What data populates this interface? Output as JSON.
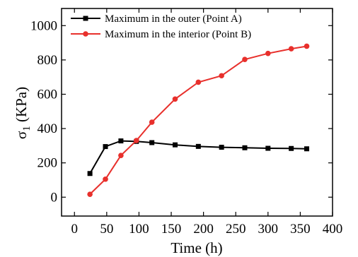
{
  "chart_data": {
    "type": "line",
    "xlabel": "Time (h)",
    "ylabel_main": "σ",
    "ylabel_sub": "1",
    "ylabel_unit": " (KPa)",
    "xlim": [
      -20,
      400
    ],
    "ylim": [
      -110,
      1100
    ],
    "xticks": [
      0,
      50,
      100,
      150,
      200,
      250,
      300,
      350,
      400
    ],
    "yticks": [
      0,
      200,
      400,
      600,
      800,
      1000
    ],
    "grid": false,
    "legend_position": "top-left",
    "series": [
      {
        "name": "Maximum in the outer (Point A)",
        "color": "#000000",
        "marker": "square",
        "x": [
          24,
          48,
          72,
          96,
          120,
          156,
          192,
          228,
          264,
          300,
          336,
          360
        ],
        "y": [
          138,
          295,
          328,
          325,
          318,
          305,
          296,
          291,
          288,
          285,
          284,
          282
        ]
      },
      {
        "name": "Maximum in the interior (Point B)",
        "color": "#e8302c",
        "marker": "circle",
        "x": [
          24,
          48,
          72,
          96,
          120,
          156,
          192,
          228,
          264,
          300,
          336,
          360
        ],
        "y": [
          17,
          105,
          243,
          330,
          437,
          572,
          670,
          708,
          803,
          838,
          865,
          880
        ]
      }
    ]
  }
}
